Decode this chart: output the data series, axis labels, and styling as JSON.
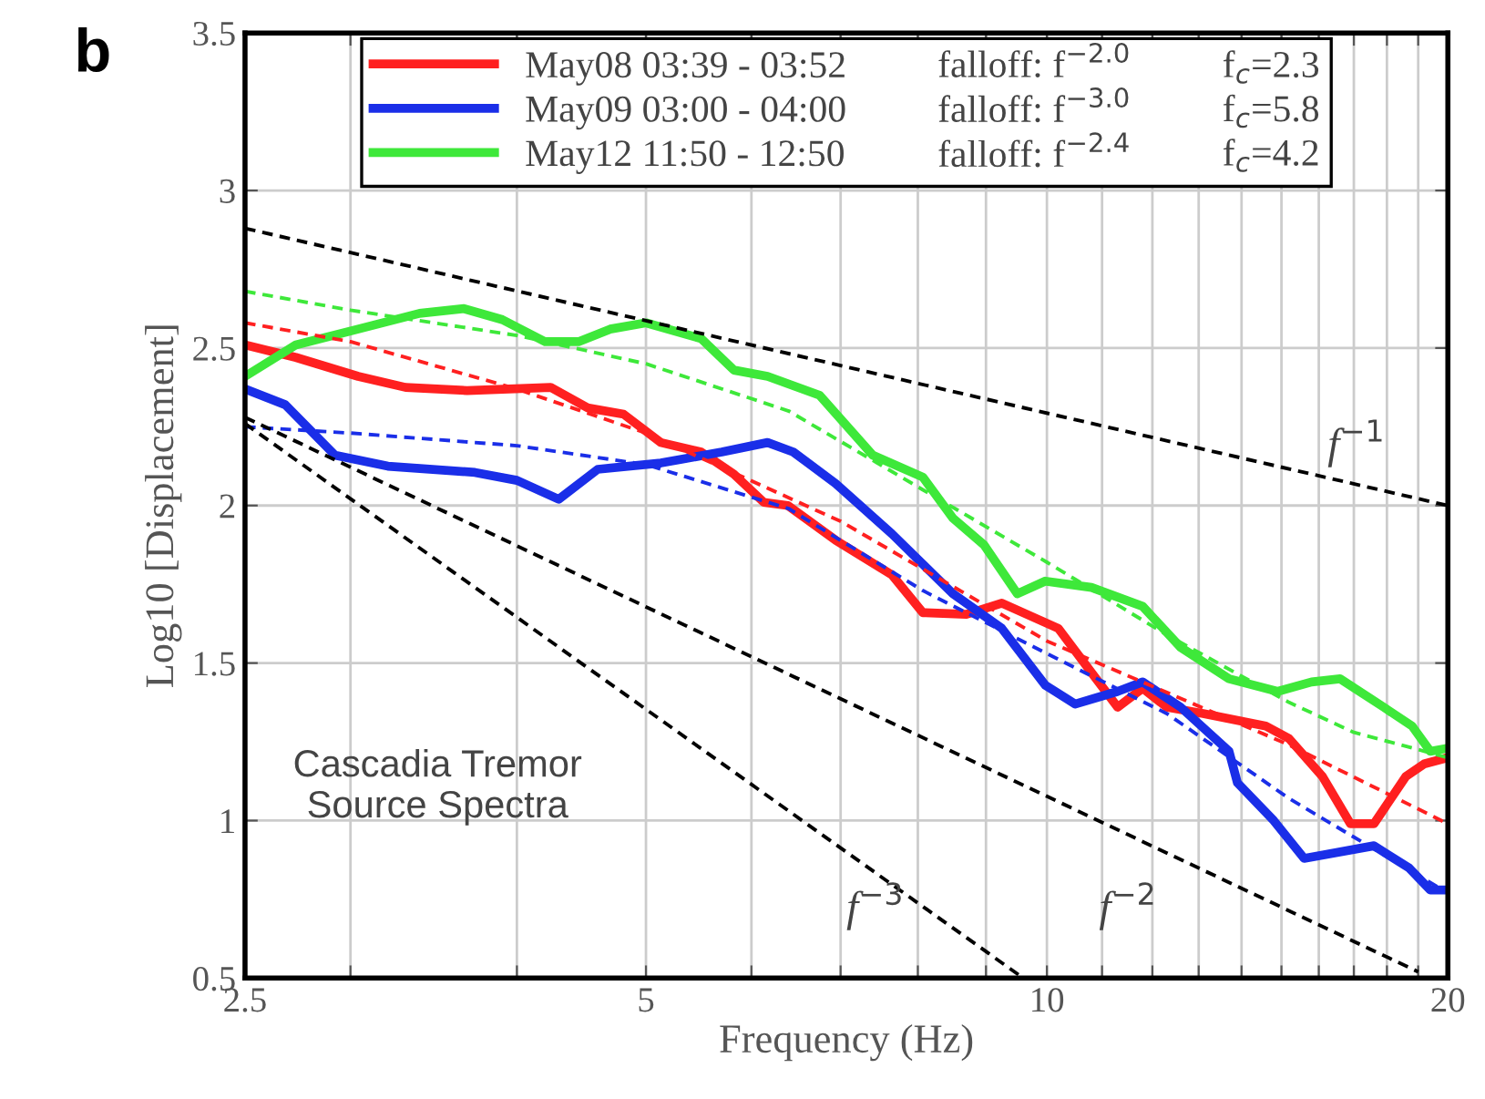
{
  "chart_data": {
    "type": "line",
    "xlabel": "Frequency (Hz)",
    "ylabel": "Log10 [Displacement]",
    "log": "x",
    "xlim": [
      2.5,
      20
    ],
    "ylim": [
      0.5,
      3.5
    ],
    "xticks": [
      2.5,
      {
        "value": 3,
        "label": null
      },
      {
        "value": 4,
        "label": null
      },
      5,
      {
        "value": 6,
        "label": null
      },
      {
        "value": 7,
        "label": null
      },
      {
        "value": 8,
        "label": null
      },
      {
        "value": 9,
        "label": null
      },
      10,
      {
        "value": 11,
        "label": null
      },
      {
        "value": 12,
        "label": null
      },
      {
        "value": 13,
        "label": null
      },
      {
        "value": 14,
        "label": null
      },
      {
        "value": 15,
        "label": null
      },
      {
        "value": 16,
        "label": null
      },
      {
        "value": 17,
        "label": null
      },
      {
        "value": 18,
        "label": null
      },
      {
        "value": 19,
        "label": null
      },
      20
    ],
    "yticks": [
      0.5,
      1,
      1.5,
      2,
      2.5,
      3,
      3.5
    ],
    "grid": true,
    "legend": "top",
    "series": [
      {
        "name": "May08 03:39 - 03:52",
        "color": "#ff2020",
        "line_style": "solid",
        "x": [
          2.5,
          2.73,
          3.04,
          3.3,
          3.67,
          4.24,
          4.52,
          4.81,
          5.13,
          5.5,
          5.82,
          6.13,
          6.39,
          6.94,
          7.65,
          8.07,
          8.7,
          9.25,
          10.2,
          10.8,
          11.3,
          11.8,
          12.3,
          13.1,
          14.6,
          15.2,
          16.1,
          16.9,
          17.6,
          18.6,
          19.2,
          20
        ],
        "values": [
          2.51,
          2.47,
          2.41,
          2.375,
          2.365,
          2.375,
          2.31,
          2.29,
          2.2,
          2.17,
          2.1,
          2.01,
          2.0,
          1.89,
          1.78,
          1.66,
          1.655,
          1.69,
          1.61,
          1.47,
          1.36,
          1.42,
          1.36,
          1.34,
          1.3,
          1.26,
          1.14,
          0.99,
          0.99,
          1.14,
          1.18,
          1.2
        ]
      },
      {
        "name": "May09 03:00 - 04:00",
        "color": "#1a2ee8",
        "line_style": "solid",
        "x": [
          2.5,
          2.68,
          2.92,
          3.2,
          3.72,
          4.0,
          4.3,
          4.6,
          5.13,
          5.7,
          6.17,
          6.45,
          6.94,
          7.65,
          8.5,
          9.25,
          9.97,
          10.5,
          11.3,
          11.8,
          12.6,
          13.7,
          13.9,
          14.8,
          15.6,
          17.6,
          18.7,
          19.4,
          20
        ],
        "values": [
          2.37,
          2.32,
          2.16,
          2.125,
          2.105,
          2.08,
          2.02,
          2.115,
          2.135,
          2.17,
          2.2,
          2.17,
          2.07,
          1.91,
          1.72,
          1.61,
          1.43,
          1.37,
          1.41,
          1.44,
          1.36,
          1.22,
          1.12,
          1.0,
          0.88,
          0.92,
          0.85,
          0.78,
          0.78
        ]
      },
      {
        "name": "May12 11:50 - 12:50",
        "color": "#3ee83a",
        "line_style": "solid",
        "x": [
          2.5,
          2.73,
          3.04,
          3.38,
          3.65,
          3.9,
          4.2,
          4.45,
          4.7,
          5.0,
          5.5,
          5.82,
          6.17,
          6.75,
          7.4,
          8.07,
          8.5,
          8.97,
          9.5,
          9.97,
          10.8,
          11.8,
          12.6,
          13.7,
          14.9,
          15.8,
          16.6,
          17.9,
          18.8,
          19.4,
          20
        ],
        "values": [
          2.41,
          2.51,
          2.56,
          2.61,
          2.625,
          2.59,
          2.52,
          2.52,
          2.56,
          2.58,
          2.53,
          2.43,
          2.41,
          2.35,
          2.16,
          2.09,
          1.96,
          1.875,
          1.72,
          1.76,
          1.74,
          1.68,
          1.55,
          1.45,
          1.41,
          1.44,
          1.45,
          1.36,
          1.3,
          1.22,
          1.23
        ]
      },
      {
        "color": "#ff2020",
        "line_style": "dashed",
        "x": [
          2.5,
          3,
          4,
          5,
          7,
          10,
          15.2,
          20
        ],
        "values": [
          2.58,
          2.52,
          2.37,
          2.23,
          1.95,
          1.57,
          1.24,
          0.99
        ]
      },
      {
        "color": "#1a2ee8",
        "line_style": "dashed",
        "x": [
          2.5,
          3,
          4,
          5,
          6.4,
          8.07,
          10,
          12.3,
          15.2,
          20
        ],
        "values": [
          2.25,
          2.23,
          2.19,
          2.13,
          1.99,
          1.73,
          1.53,
          1.34,
          1.07,
          0.77
        ]
      },
      {
        "color": "#3ee83a",
        "line_style": "dashed",
        "x": [
          2.5,
          3,
          4,
          5,
          6.4,
          8.07,
          10,
          12.3,
          15.2,
          17,
          20
        ],
        "values": [
          2.68,
          2.62,
          2.54,
          2.45,
          2.3,
          2.05,
          1.82,
          1.59,
          1.375,
          1.28,
          1.2
        ]
      },
      {
        "color": "#000000",
        "line_style": "dashed",
        "x": [
          2.5,
          20
        ],
        "values": [
          2.88,
          2.0
        ]
      },
      {
        "color": "#000000",
        "line_style": "dashed",
        "x": [
          2.5,
          19
        ],
        "values": [
          2.28,
          0.52
        ]
      },
      {
        "color": "#000000",
        "line_style": "dashed",
        "x": [
          2.5,
          9.6
        ],
        "values": [
          2.26,
          0.5
        ]
      }
    ],
    "annotations": [
      "falloff: f$^{−2.0}$",
      "falloff: f$^{−3.0}$",
      "falloff: f$^{−2.4}$",
      "f$_{c}$=2.3",
      "f$_{c}$=5.8",
      "f$_{c}$=4.2",
      "b",
      "Cascadia Tremor\nSource Spectra",
      "f$^{−1}$",
      "f$^{−3}$",
      "f$^{−2}$"
    ]
  }
}
